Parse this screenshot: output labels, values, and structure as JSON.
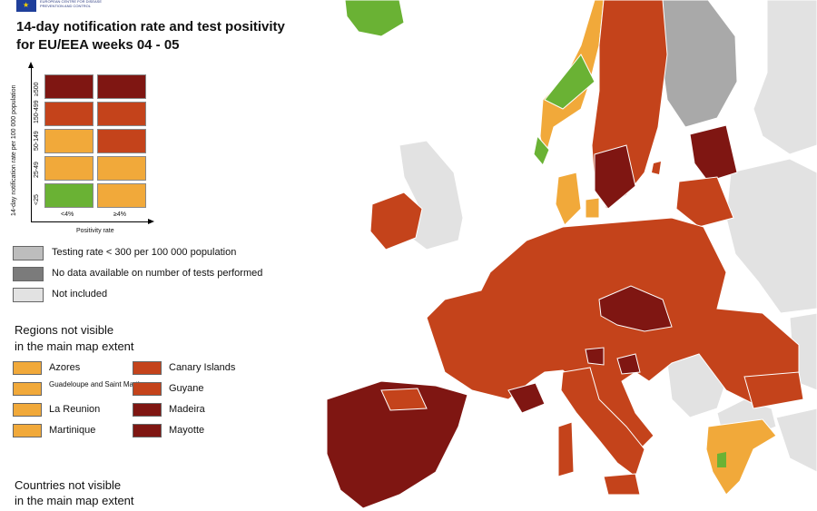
{
  "header": {
    "logo_text": "EUROPEAN CENTRE FOR DISEASE PREVENTION AND CONTROL",
    "title_line1": "14-day notification rate and test positivity",
    "title_line2": "for EU/EEA weeks 04 - 05"
  },
  "matrix": {
    "y_axis_label": "14-day notification rate per 100 000 population",
    "x_axis_label": "Positivity rate",
    "rows": [
      "≥500",
      "150-499",
      "50-149",
      "25-49",
      "<25"
    ],
    "columns": [
      "<4%",
      "≥4%"
    ],
    "cells": [
      [
        "#7f1612",
        "#7f1612"
      ],
      [
        "#c4431b",
        "#c4431b"
      ],
      [
        "#f1a93a",
        "#c4431b"
      ],
      [
        "#f1a93a",
        "#f1a93a"
      ],
      [
        "#6ab234",
        "#f1a93a"
      ]
    ]
  },
  "status_legend": [
    {
      "label": "Testing rate < 300 per 100 000 population",
      "color": "#bdbdbd"
    },
    {
      "label": "No data available on number of tests performed",
      "color": "#7b7b7b"
    },
    {
      "label": "Not included",
      "color": "#e2e2e2"
    }
  ],
  "regions": {
    "title_line1": "Regions not visible",
    "title_line2": "in the main map extent",
    "left": [
      {
        "label": "Azores",
        "color": "#f1a93a"
      },
      {
        "label": "Guadeloupe and Saint Martin",
        "color": "#f1a93a"
      },
      {
        "label": "La Reunion",
        "color": "#f1a93a"
      },
      {
        "label": "Martinique",
        "color": "#f1a93a"
      }
    ],
    "right": [
      {
        "label": "Canary Islands",
        "color": "#c4431b"
      },
      {
        "label": "Guyane",
        "color": "#c4431b"
      },
      {
        "label": "Madeira",
        "color": "#7f1612"
      },
      {
        "label": "Mayotte",
        "color": "#7f1612"
      }
    ]
  },
  "countries": {
    "title_line1": "Countries not visible",
    "title_line2": "in the main map extent"
  },
  "colors": {
    "dark_red": "#7f1612",
    "red": "#c4431b",
    "orange": "#f1a93a",
    "green": "#6ab234",
    "grey": "#a9a9a9",
    "not_included": "#e2e2e2",
    "border": "#9a9a9a"
  }
}
